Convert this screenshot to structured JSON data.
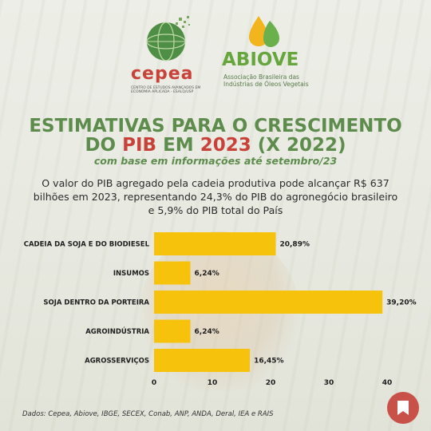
{
  "logos": {
    "cepea_name": "cepea",
    "cepea_subtitle": "CENTRO DE ESTUDOS AVANÇADOS EM ECONOMIA APLICADA - ESALQ/USP",
    "abiove_name": "ABIOVE",
    "abiove_subtitle": "Associação Brasileira das Indústrias de Óleos Vegetais"
  },
  "header": {
    "title_line1": "ESTIMATIVAS PARA O CRESCIMENTO",
    "title_line2_a": "DO ",
    "title_line2_pib": "PIB",
    "title_line2_b": " EM ",
    "title_line2_year": "2023",
    "title_line2_c": " (X 2022)",
    "subtitle": "com base em informações até setembro/23",
    "description": "O valor do PIB agregado pela cadeia produtiva pode alcançar R$ 637 bilhões em 2023, representando 24,3% do PIB do agronegócio brasileiro e 5,9% do PIB total do País"
  },
  "chart_data": {
    "type": "bar",
    "orientation": "horizontal",
    "categories": [
      "CADEIA DA SOJA E DO BIODIESEL",
      "INSUMOS",
      "SOJA DENTRO DA PORTEIRA",
      "AGROINDÚSTRIA",
      "AGROSSERVIÇOS"
    ],
    "values": [
      20.89,
      6.24,
      39.2,
      6.24,
      16.45
    ],
    "value_labels": [
      "20,89%",
      "6,24%",
      "39,20%",
      "6,24%",
      "16,45%"
    ],
    "xticks": [
      "0",
      "10",
      "20",
      "30",
      "40"
    ],
    "xlim": [
      0,
      40
    ],
    "bar_color": "#f7c20c",
    "grid": false,
    "title": "",
    "xlabel": "",
    "ylabel": ""
  },
  "footer": {
    "source": "Dados: Cepea, Abiove, IBGE, SECEX, Conab, ANP, ANDA, Deral, IEA e RAIS",
    "save_icon": "bookmark-icon"
  },
  "colors": {
    "title_green": "#5e8c4d",
    "accent_red": "#c8423a",
    "abiove_green": "#66a63d",
    "button_red": "#c8524a"
  }
}
